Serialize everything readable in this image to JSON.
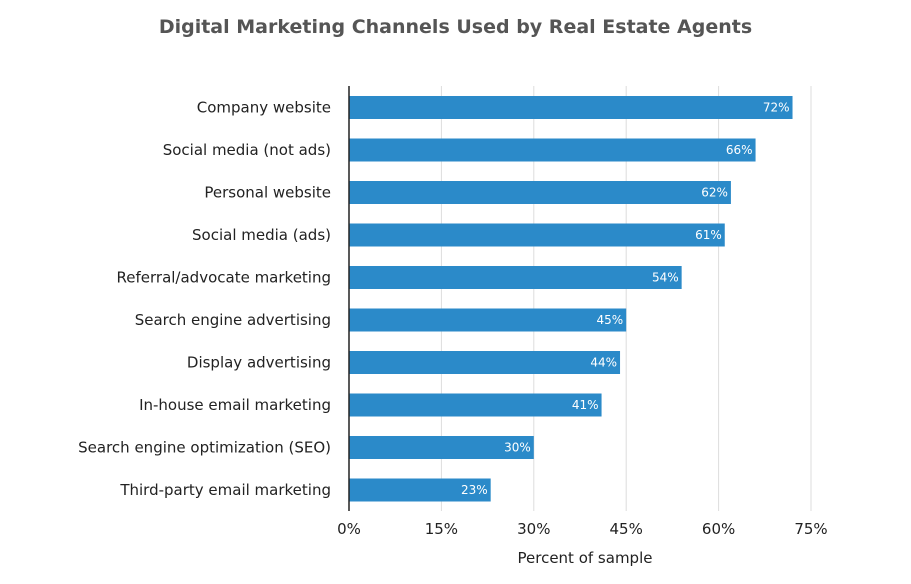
{
  "chart_data": {
    "type": "bar",
    "orientation": "horizontal",
    "title": "Digital Marketing Channels Used by Real Estate Agents",
    "xlabel": "Percent of sample",
    "ylabel": "",
    "categories": [
      "Company website",
      "Social media (not ads)",
      "Personal website",
      "Social media (ads)",
      "Referral/advocate marketing",
      "Search engine advertising",
      "Display advertising",
      "In-house email marketing",
      "Search engine optimization (SEO)",
      "Third-party email marketing"
    ],
    "values": [
      72,
      66,
      62,
      61,
      54,
      45,
      44,
      41,
      30,
      23
    ],
    "value_labels": [
      "72%",
      "66%",
      "62%",
      "61%",
      "54%",
      "45%",
      "44%",
      "41%",
      "30%",
      "23%"
    ],
    "xlim": [
      0,
      75
    ],
    "xticks": [
      0,
      15,
      30,
      45,
      60,
      75
    ],
    "xtick_labels": [
      "0%",
      "15%",
      "30%",
      "45%",
      "60%",
      "75%"
    ],
    "grid": "vertical",
    "legend": "none",
    "bar_color": "#2b8ac9",
    "gridline_color": "#dddddd"
  }
}
